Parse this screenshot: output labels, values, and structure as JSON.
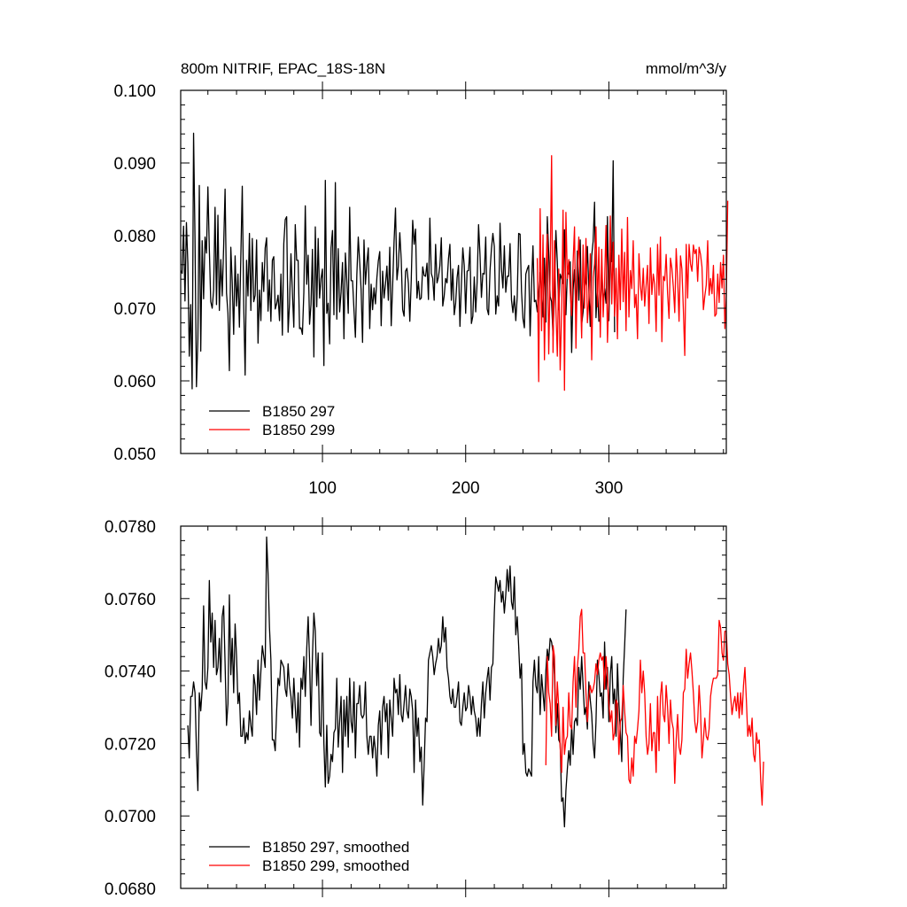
{
  "figure_title": "800m NITRIF, EPAC_18S-18N",
  "units": "mmol/m^3/y",
  "chart_data": [
    {
      "type": "line",
      "xlim": [
        1,
        382
      ],
      "ylim": [
        0.05,
        0.1
      ],
      "xticks": [
        100,
        200,
        300
      ],
      "yticks": [
        0.05,
        0.06,
        0.07,
        0.08,
        0.09,
        0.1
      ],
      "ytick_labels": [
        "0.050",
        "0.060",
        "0.070",
        "0.080",
        "0.090",
        "0.100"
      ],
      "xtick_labels": [
        "100",
        "200",
        "300"
      ],
      "legend_position": "bottom-left",
      "series": [
        {
          "name": "B1850 297",
          "color": "#000000",
          "x_start": 1,
          "values": [
            0.0752,
            0.0748,
            0.0813,
            0.071,
            0.0818,
            0.0762,
            0.0634,
            0.0705,
            0.0589,
            0.0941,
            0.0795,
            0.0592,
            0.0657,
            0.0869,
            0.0641,
            0.0793,
            0.0713,
            0.0798,
            0.0776,
            0.0867,
            0.0781,
            0.0709,
            0.07,
            0.0725,
            0.0839,
            0.0705,
            0.0828,
            0.0697,
            0.0767,
            0.0717,
            0.0785,
            0.0864,
            0.0721,
            0.0693,
            0.0614,
            0.0784,
            0.0735,
            0.0664,
            0.0772,
            0.0703,
            0.0747,
            0.0674,
            0.0772,
            0.0868,
            0.0706,
            0.0608,
            0.0766,
            0.0717,
            0.0803,
            0.0697,
            0.0796,
            0.0709,
            0.0718,
            0.0794,
            0.0652,
            0.0725,
            0.0683,
            0.0763,
            0.0723,
            0.0783,
            0.0797,
            0.0696,
            0.0739,
            0.0682,
            0.0766,
            0.0771,
            0.0699,
            0.0706,
            0.0718,
            0.0683,
            0.0747,
            0.0663,
            0.0789,
            0.0822,
            0.0826,
            0.0667,
            0.0707,
            0.0775,
            0.0721,
            0.0674,
            0.0815,
            0.0766,
            0.0766,
            0.0672,
            0.0673,
            0.0664,
            0.0722,
            0.0841,
            0.0733,
            0.0773,
            0.0678,
            0.0705,
            0.0781,
            0.0633,
            0.0812,
            0.0702,
            0.0796,
            0.0714,
            0.0741,
            0.0754,
            0.0621,
            0.0876,
            0.0693,
            0.0707,
            0.0651,
            0.0783,
            0.0807,
            0.0691,
            0.0873,
            0.0685,
            0.0782,
            0.0695,
            0.0722,
            0.0763,
            0.0658,
            0.0776,
            0.0738,
            0.0693,
            0.0839,
            0.0738,
            0.0738,
            0.0698,
            0.066,
            0.0746,
            0.0798,
            0.0763,
            0.0725,
            0.0653,
            0.0794,
            0.0733,
            0.0762,
            0.0783,
            0.0672,
            0.0733,
            0.0698,
            0.0728,
            0.0706,
            0.0742,
            0.0765,
            0.0778,
            0.0676,
            0.0751,
            0.0714,
            0.0733,
            0.0758,
            0.0711,
            0.0784,
            0.0676,
            0.0731,
            0.0792,
            0.0838,
            0.0739,
            0.0758,
            0.0804,
            0.0767,
            0.0698,
            0.0689,
            0.0751,
            0.0755,
            0.0734,
            0.0682,
            0.0739,
            0.0821,
            0.0788,
            0.0809,
            0.0714,
            0.0737,
            0.0712,
            0.0714,
            0.0757,
            0.0745,
            0.0744,
            0.0762,
            0.0712,
            0.0824,
            0.0748,
            0.0741,
            0.0711,
            0.0788,
            0.0735,
            0.0743,
            0.0759,
            0.0797,
            0.0703,
            0.0717,
            0.0741,
            0.0735,
            0.0768,
            0.0788,
            0.0711,
            0.0754,
            0.0691,
            0.0707,
            0.0742,
            0.0759,
            0.0675,
            0.0733,
            0.0783,
            0.0759,
            0.0693,
            0.0751,
            0.0752,
            0.0784,
            0.0679,
            0.0689,
            0.0743,
            0.0695,
            0.0736,
            0.0815,
            0.0774,
            0.0715,
            0.0748,
            0.0747,
            0.0798,
            0.0699,
            0.0691,
            0.0752,
            0.0782,
            0.0803,
            0.0785,
            0.0692,
            0.0717,
            0.0703,
            0.0817,
            0.0754,
            0.0728,
            0.0786,
            0.0722,
            0.0744,
            0.0744,
            0.0789,
            0.0711,
            0.0694,
            0.0717,
            0.0683,
            0.0716,
            0.0803,
            0.0802,
            0.0723,
            0.0686,
            0.0673,
            0.0747,
            0.0754,
            0.0759,
            0.0662,
            0.0733,
            0.0786,
            0.0709,
            0.0711,
            0.0695,
            0.0722,
            0.0749,
            0.0721,
            0.0688,
            0.0769,
            0.0681,
            0.0826,
            0.0775,
            0.0716,
            0.0709,
            0.0662,
            0.0721,
            0.0807,
            0.0764,
            0.0698,
            0.0747,
            0.0741,
            0.0734,
            0.0808,
            0.0691,
            0.0749,
            0.0747,
            0.0764,
            0.0639,
            0.0725,
            0.0753,
            0.0695,
            0.0779,
            0.0711,
            0.0794,
            0.0678,
            0.0695,
            0.0729,
            0.0736,
            0.0785,
            0.0726,
            0.0675,
            0.0772,
            0.0792,
            0.0846,
            0.0687,
            0.0731,
            0.0682,
            0.0685,
            0.0758,
            0.0706,
            0.0727,
            0.0707,
            0.0826,
            0.0683,
            0.0776,
            0.0764,
            0.0903,
            0.0667
          ]
        },
        {
          "name": "B1850 299",
          "color": "#ff0000",
          "x_start": 250,
          "values": [
            0.0769,
            0.0599,
            0.0837,
            0.0669,
            0.0801,
            0.0629,
            0.0749,
            0.0802,
            0.0637,
            0.0749,
            0.091,
            0.0639,
            0.0793,
            0.0699,
            0.0634,
            0.0754,
            0.0615,
            0.0696,
            0.0835,
            0.0587,
            0.0832,
            0.0741,
            0.0767,
            0.0724,
            0.069,
            0.0762,
            0.0812,
            0.0645,
            0.0752,
            0.0798,
            0.0729,
            0.0659,
            0.0787,
            0.07,
            0.0796,
            0.068,
            0.0712,
            0.0775,
            0.0629,
            0.0742,
            0.0761,
            0.0812,
            0.0702,
            0.0784,
            0.066,
            0.0781,
            0.0688,
            0.0736,
            0.0814,
            0.0653,
            0.0718,
            0.0827,
            0.0706,
            0.0791,
            0.0689,
            0.0755,
            0.0658,
            0.0773,
            0.0698,
            0.0809,
            0.0709,
            0.0777,
            0.0669,
            0.0825,
            0.0688,
            0.0752,
            0.0727,
            0.0793,
            0.0701,
            0.0719,
            0.0658,
            0.0775,
            0.0732,
            0.0711,
            0.0755,
            0.0703,
            0.0731,
            0.0759,
            0.0679,
            0.0783,
            0.0719,
            0.0747,
            0.0733,
            0.0668,
            0.0788,
            0.0718,
            0.0798,
            0.0654,
            0.0744,
            0.0738,
            0.0774,
            0.072,
            0.0686,
            0.0769,
            0.0755,
            0.0729,
            0.0694,
            0.0782,
            0.0741,
            0.0682,
            0.0772,
            0.0754,
            0.0699,
            0.0635,
            0.0788,
            0.0714,
            0.0788,
            0.0761,
            0.0751,
            0.0787,
            0.0775,
            0.0781,
            0.0737,
            0.0784,
            0.0774,
            0.0757,
            0.0698,
            0.0717,
            0.0732,
            0.0793,
            0.0718,
            0.0741,
            0.072,
            0.0759,
            0.0689,
            0.0692,
            0.0747,
            0.0708,
            0.0763,
            0.0728,
            0.0773,
            0.0672,
            0.0718,
            0.0848
          ]
        }
      ]
    },
    {
      "type": "line",
      "xlim": [
        1,
        382
      ],
      "ylim": [
        0.068,
        0.078
      ],
      "xticks": [
        100,
        200,
        300
      ],
      "yticks": [
        0.068,
        0.07,
        0.072,
        0.074,
        0.076,
        0.078
      ],
      "ytick_labels": [
        "0.0680",
        "0.0700",
        "0.0720",
        "0.0740",
        "0.0760",
        "0.0780"
      ],
      "xtick_labels": [],
      "legend_position": "bottom-left",
      "series": [
        {
          "name": "B1850 297, smoothed",
          "color": "#000000",
          "x_start": 6,
          "values": [
            0.0725,
            0.0716,
            0.0733,
            0.0733,
            0.0737,
            0.0734,
            0.0718,
            0.0707,
            0.0734,
            0.0729,
            0.0735,
            0.0758,
            0.0737,
            0.0735,
            0.0741,
            0.0765,
            0.0748,
            0.0756,
            0.0741,
            0.0754,
            0.0739,
            0.0741,
            0.0749,
            0.0737,
            0.0755,
            0.0758,
            0.0742,
            0.0725,
            0.0731,
            0.0761,
            0.0739,
            0.0749,
            0.0734,
            0.0753,
            0.0744,
            0.0731,
            0.0734,
            0.0722,
            0.0722,
            0.0727,
            0.072,
            0.0723,
            0.0721,
            0.0729,
            0.0725,
            0.0722,
            0.0739,
            0.0736,
            0.0728,
            0.0743,
            0.0732,
            0.074,
            0.0747,
            0.0744,
            0.0741,
            0.0777,
            0.0767,
            0.0752,
            0.0743,
            0.0721,
            0.0721,
            0.0718,
            0.0729,
            0.0738,
            0.0736,
            0.0743,
            0.0742,
            0.0741,
            0.0735,
            0.0733,
            0.0742,
            0.0736,
            0.0733,
            0.0727,
            0.0738,
            0.073,
            0.0723,
            0.0734,
            0.0719,
            0.0738,
            0.0735,
            0.0744,
            0.0733,
            0.0746,
            0.0755,
            0.0743,
            0.0725,
            0.0744,
            0.0756,
            0.0751,
            0.0736,
            0.0745,
            0.0723,
            0.0722,
            0.0745,
            0.072,
            0.0708,
            0.0725,
            0.0709,
            0.0711,
            0.0717,
            0.0715,
            0.0723,
            0.0724,
            0.0738,
            0.0719,
            0.0726,
            0.0733,
            0.0712,
            0.0732,
            0.0722,
            0.0733,
            0.0719,
            0.0738,
            0.0726,
            0.0723,
            0.0737,
            0.0716,
            0.0731,
            0.0731,
            0.0736,
            0.0728,
            0.0727,
            0.0728,
            0.0737,
            0.0722,
            0.0717,
            0.0722,
            0.0722,
            0.0716,
            0.0722,
            0.0718,
            0.0711,
            0.0725,
            0.0729,
            0.0717,
            0.073,
            0.0733,
            0.0726,
            0.0731,
            0.0716,
            0.0732,
            0.0727,
            0.0722,
            0.0738,
            0.0734,
            0.0735,
            0.0728,
            0.0739,
            0.0728,
            0.0726,
            0.0731,
            0.0736,
            0.0729,
            0.0727,
            0.0735,
            0.0733,
            0.0729,
            0.0712,
            0.0732,
            0.0722,
            0.0727,
            0.0715,
            0.0719,
            0.0703,
            0.0714,
            0.0727,
            0.0726,
            0.0743,
            0.0745,
            0.0747,
            0.0744,
            0.0739,
            0.0742,
            0.0744,
            0.0749,
            0.0745,
            0.0747,
            0.0755,
            0.0748,
            0.0752,
            0.0741,
            0.0738,
            0.0733,
            0.0731,
            0.0735,
            0.073,
            0.073,
            0.0733,
            0.0737,
            0.0726,
            0.0725,
            0.073,
            0.0734,
            0.0729,
            0.073,
            0.0736,
            0.0733,
            0.0728,
            0.0733,
            0.0729,
            0.0727,
            0.0722,
            0.0727,
            0.0722,
            0.0731,
            0.0737,
            0.0727,
            0.0734,
            0.0738,
            0.0741,
            0.0732,
            0.0741,
            0.0742,
            0.0756,
            0.0766,
            0.0764,
            0.0762,
            0.0765,
            0.0759,
            0.0762,
            0.0756,
            0.0761,
            0.0768,
            0.0762,
            0.0769,
            0.0759,
            0.0757,
            0.0766,
            0.075,
            0.0755,
            0.0747,
            0.0738,
            0.0742,
            0.0717,
            0.072,
            0.0712,
            0.0711,
            0.0713,
            0.0712,
            0.0711,
            0.0737,
            0.0743,
            0.0736,
            0.0734,
            0.0744,
            0.0728,
            0.0739,
            0.0734,
            0.0729,
            0.074,
            0.0746,
            0.0743,
            0.0749,
            0.0748,
            0.0745,
            0.0739,
            0.0723,
            0.0731,
            0.0721,
            0.072,
            0.0704,
            0.0705,
            0.0697,
            0.0707,
            0.0713,
            0.0718,
            0.0714,
            0.0725,
            0.0717,
            0.0726,
            0.0727,
            0.0725,
            0.0741,
            0.0735,
            0.0744,
            0.0736,
            0.0728,
            0.073,
            0.0724,
            0.0737,
            0.0732,
            0.0728,
            0.072,
            0.0716,
            0.0726,
            0.0743,
            0.0739,
            0.0733,
            0.0734,
            0.0727,
            0.0748,
            0.0735,
            0.0741,
            0.0726,
            0.0739,
            0.0744,
            0.0731,
            0.0735,
            0.0722,
            0.0742,
            0.0731,
            0.0723,
            0.0715,
            0.0738,
            0.0747,
            0.0757
          ]
        },
        {
          "name": "B1850 299, smoothed",
          "color": "#ff0000",
          "x_start": 256,
          "values": [
            0.0714,
            0.0744,
            0.0734,
            0.0731,
            0.0722,
            0.0747,
            0.0744,
            0.0725,
            0.0737,
            0.073,
            0.0719,
            0.0712,
            0.073,
            0.0717,
            0.0721,
            0.0722,
            0.0734,
            0.0725,
            0.0724,
            0.0737,
            0.0744,
            0.073,
            0.0741,
            0.0746,
            0.0755,
            0.0757,
            0.0745,
            0.0745,
            0.0734,
            0.0726,
            0.0733,
            0.0736,
            0.0734,
            0.0735,
            0.0737,
            0.0742,
            0.0739,
            0.0743,
            0.0745,
            0.0743,
            0.0744,
            0.0735,
            0.0744,
            0.0738,
            0.0731,
            0.0726,
            0.0729,
            0.0721,
            0.0723,
            0.0732,
            0.0731,
            0.0717,
            0.0726,
            0.0727,
            0.0736,
            0.0729,
            0.0723,
            0.0722,
            0.071,
            0.0709,
            0.0716,
            0.0711,
            0.0722,
            0.072,
            0.0724,
            0.0729,
            0.0743,
            0.0734,
            0.074,
            0.0734,
            0.0722,
            0.0717,
            0.072,
            0.0731,
            0.0718,
            0.0723,
            0.0723,
            0.0712,
            0.0733,
            0.0718,
            0.0733,
            0.0737,
            0.0728,
            0.0726,
            0.0736,
            0.073,
            0.072,
            0.0732,
            0.0726,
            0.0724,
            0.0709,
            0.0721,
            0.0728,
            0.0719,
            0.0717,
            0.0721,
            0.0734,
            0.0735,
            0.0746,
            0.0738,
            0.0742,
            0.0745,
            0.074,
            0.0734,
            0.0726,
            0.0723,
            0.0726,
            0.0736,
            0.0729,
            0.0716,
            0.0721,
            0.0727,
            0.0722,
            0.0721,
            0.0724,
            0.0733,
            0.0736,
            0.0738,
            0.0738,
            0.0738,
            0.0739,
            0.0754,
            0.0752,
            0.0745,
            0.0743,
            0.0751,
            0.0751,
            0.0742,
            0.0739,
            0.0733,
            0.0728,
            0.0731,
            0.0733,
            0.0729,
            0.0734,
            0.0727,
            0.0734,
            0.0728,
            0.0736,
            0.0741,
            0.0732,
            0.0722,
            0.0725,
            0.0722,
            0.0727,
            0.0717,
            0.0715,
            0.0723,
            0.072,
            0.0721,
            0.071,
            0.0703,
            0.0715
          ]
        }
      ]
    }
  ]
}
